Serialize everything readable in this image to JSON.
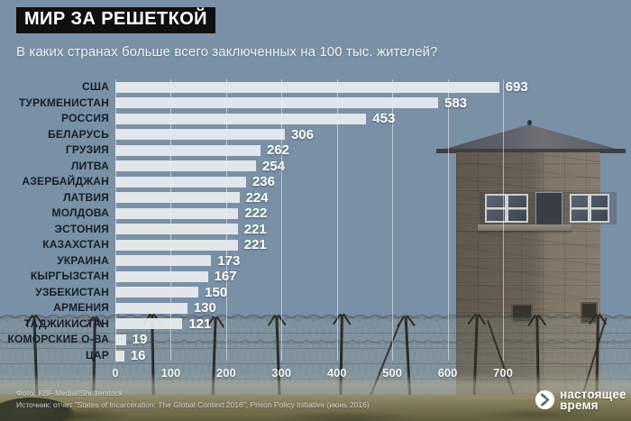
{
  "chart_data": {
    "type": "bar",
    "orientation": "horizontal",
    "title": "МИР ЗА РЕШЕТКОЙ",
    "subtitle": "В каких странах больше всего заключенных на 100 тыс. жителей?",
    "categories": [
      "США",
      "ТУРКМЕНИСТАН",
      "РОССИЯ",
      "БЕЛАРУСЬ",
      "ГРУЗИЯ",
      "ЛИТВА",
      "АЗЕРБАЙДЖАН",
      "ЛАТВИЯ",
      "МОЛДОВА",
      "ЭСТОНИЯ",
      "КАЗАХСТАН",
      "УКРАИНА",
      "КЫРГЫЗСТАН",
      "УЗБЕКИСТАН",
      "АРМЕНИЯ",
      "ТАДЖИКИСТАН",
      "КОМОРСКИЕ О-ВА",
      "ЦАР"
    ],
    "values": [
      693,
      583,
      453,
      306,
      262,
      254,
      236,
      224,
      222,
      221,
      221,
      173,
      167,
      150,
      130,
      121,
      19,
      16
    ],
    "x_ticks": [
      0,
      100,
      200,
      300,
      400,
      500,
      600,
      700
    ],
    "xlim": [
      0,
      700
    ],
    "xlabel": "",
    "ylabel": "",
    "grid": true,
    "legend": false,
    "bar_color": "#eaeef0",
    "label_color": "#161f2a",
    "value_color": "#ffffff"
  },
  "credits": {
    "photo": "Фото: KBF Media//Shutterstock",
    "source": "Источник: отчет \"States of Incarceration: The Global Context 2016\", Prison Policy Initiative (июнь 2016)"
  },
  "logo": {
    "line1": "настоящее",
    "line2": "время",
    "icon": "play-circle-icon"
  }
}
